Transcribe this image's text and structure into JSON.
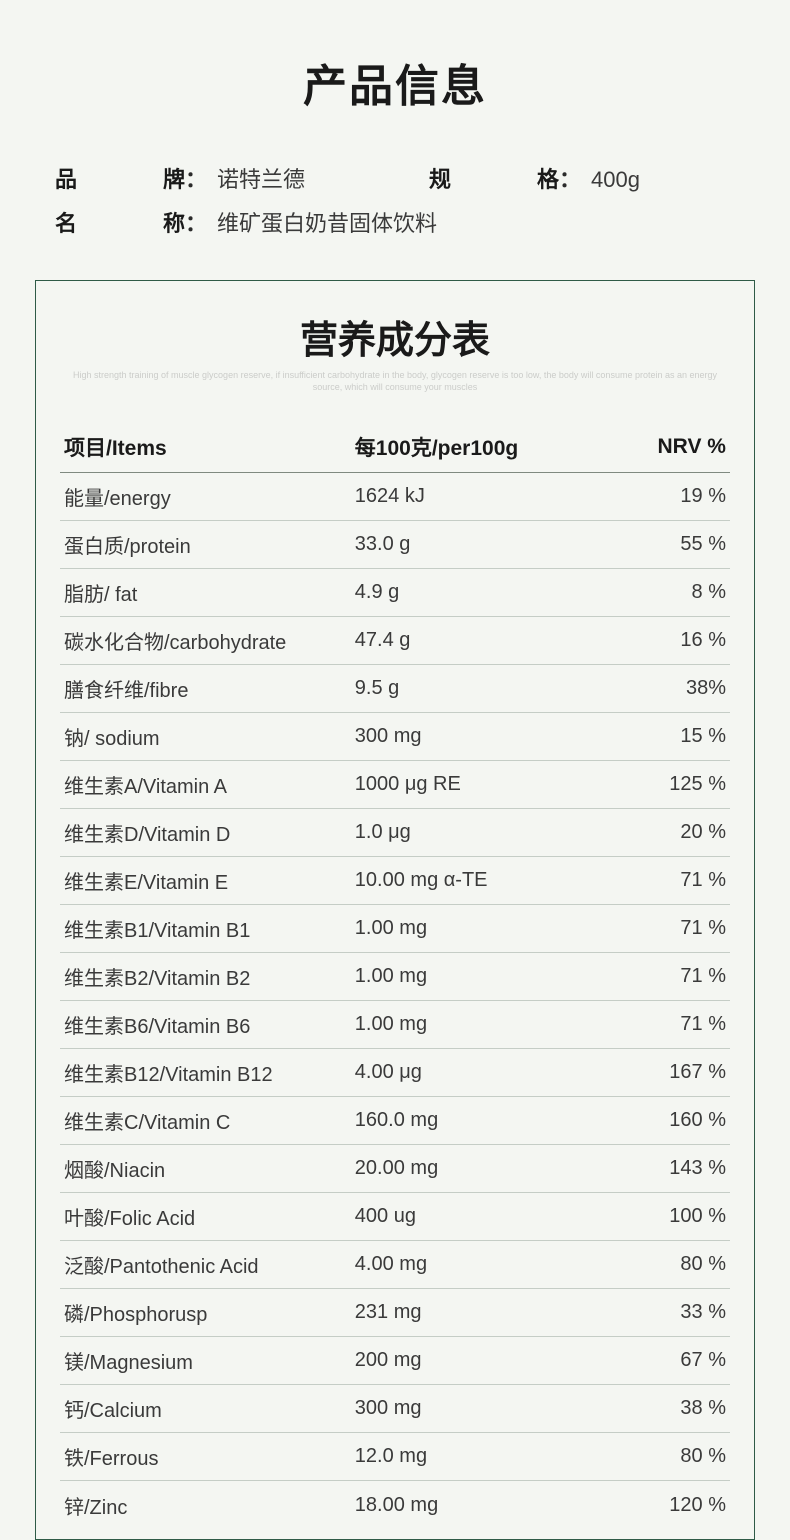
{
  "title": "产品信息",
  "info": {
    "brand_label": "品　　牌",
    "brand_value": "诺特兰德",
    "spec_label": "规　　格",
    "spec_value": "400g",
    "name_label": "名　　称",
    "name_value": "维矿蛋白奶昔固体饮料"
  },
  "nutrition": {
    "title": "营养成分表",
    "subtitle": "High strength training of muscle glycogen reserve, if insufficient carbohydrate in the body, glycogen reserve is too low, the body will consume protein as an energy source, which will consume your muscles",
    "headers": {
      "item": "项目/Items",
      "per100g": "每100克/per100g",
      "nrv": "NRV %"
    },
    "rows": [
      {
        "item": "能量/energy",
        "per100g": "1624 kJ",
        "nrv": "19 %"
      },
      {
        "item": "蛋白质/protein",
        "per100g": "33.0 g",
        "nrv": "55 %"
      },
      {
        "item": "脂肪/ fat",
        "per100g": "4.9 g",
        "nrv": "8 %"
      },
      {
        "item": "碳水化合物/carbohydrate",
        "per100g": "47.4 g",
        "nrv": "16 %"
      },
      {
        "item": "膳食纤维/fibre",
        "per100g": "9.5 g",
        "nrv": "38%"
      },
      {
        "item": "钠/ sodium",
        "per100g": "300 mg",
        "nrv": "15 %"
      },
      {
        "item": "维生素A/Vitamin A",
        "per100g": "1000 μg RE",
        "nrv": "125 %"
      },
      {
        "item": "维生素D/Vitamin D",
        "per100g": "1.0 μg",
        "nrv": "20 %"
      },
      {
        "item": "维生素E/Vitamin E",
        "per100g": "10.00 mg α-TE",
        "nrv": "71 %"
      },
      {
        "item": "维生素B1/Vitamin B1",
        "per100g": "1.00 mg",
        "nrv": "71 %"
      },
      {
        "item": "维生素B2/Vitamin B2",
        "per100g": "1.00 mg",
        "nrv": "71 %"
      },
      {
        "item": "维生素B6/Vitamin B6",
        "per100g": "1.00 mg",
        "nrv": "71 %"
      },
      {
        "item": "维生素B12/Vitamin B12",
        "per100g": "4.00 μg",
        "nrv": "167 %"
      },
      {
        "item": "维生素C/Vitamin C",
        "per100g": "160.0 mg",
        "nrv": "160 %"
      },
      {
        "item": "烟酸/Niacin",
        "per100g": "20.00 mg",
        "nrv": "143 %"
      },
      {
        "item": "叶酸/Folic Acid",
        "per100g": "400 ug",
        "nrv": "100 %"
      },
      {
        "item": "泛酸/Pantothenic Acid",
        "per100g": "4.00 mg",
        "nrv": "80 %"
      },
      {
        "item": "磷/Phosphorusp",
        "per100g": "231 mg",
        "nrv": "33 %"
      },
      {
        "item": "镁/Magnesium",
        "per100g": "200 mg",
        "nrv": "67 %"
      },
      {
        "item": "钙/Calcium",
        "per100g": "300 mg",
        "nrv": "38 %"
      },
      {
        "item": "铁/Ferrous",
        "per100g": "12.0 mg",
        "nrv": "80 %"
      },
      {
        "item": "锌/Zinc",
        "per100g": "18.00 mg",
        "nrv": "120 %"
      }
    ]
  },
  "colors": {
    "background": "#f4f6f2",
    "border": "#2f5b47",
    "row_divider": "#c5cdc6",
    "text_primary": "#1a1a1a",
    "text_secondary": "#3a3a3a"
  }
}
